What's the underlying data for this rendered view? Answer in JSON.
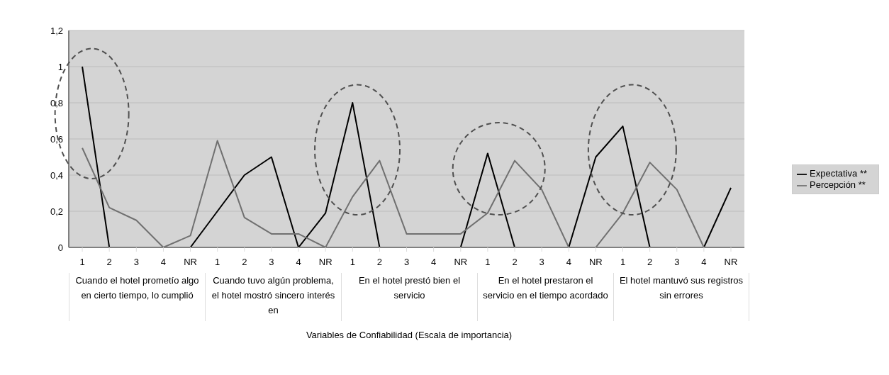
{
  "chart_data": {
    "type": "line",
    "categories": [
      "1",
      "2",
      "3",
      "4",
      "NR",
      "1",
      "2",
      "3",
      "4",
      "NR",
      "1",
      "2",
      "3",
      "4",
      "NR",
      "1",
      "2",
      "3",
      "4",
      "NR",
      "1",
      "2",
      "3",
      "4",
      "NR"
    ],
    "annotations": [
      "Cuando el hotel prometío algo en cierto tiempo, lo cumplió",
      "Cuando tuvo algún problema, el hotel mostró sincero interés en",
      "En el hotel prestó bien el servicio",
      "En el hotel prestaron el servicio en el tiempo acordado",
      "El hotel mantuvó sus registros sin errores",
      "Variables de Confiabilidad (Escala de importancia)"
    ],
    "series": [
      {
        "name": "Expectativa **",
        "color": "#000000",
        "values": [
          1,
          0,
          0,
          0,
          0,
          0.2,
          0.4,
          0.5,
          0,
          0.19,
          0.8,
          0,
          0,
          0,
          0,
          0.52,
          0,
          0,
          0,
          0.5,
          0.67,
          0,
          0,
          0,
          0.33
        ]
      },
      {
        "name": "Percepción **",
        "color": "#707070",
        "values": [
          0.55,
          0.22,
          0.15,
          0,
          0.065,
          0.59,
          0.165,
          0.075,
          0.075,
          0,
          0.28,
          0.48,
          0.075,
          0.075,
          0.075,
          0.19,
          0.48,
          0.32,
          0,
          0,
          0.19,
          0.47,
          0.32,
          0,
          null
        ]
      }
    ],
    "ylim": [
      0,
      1.2
    ],
    "yticks": [
      0,
      {
        "value": 0.2,
        "label": "0,2"
      },
      {
        "value": 0.4,
        "label": "0,4"
      },
      {
        "value": 0.6,
        "label": "0,6"
      },
      {
        "value": 0.8,
        "label": "0,8"
      },
      1,
      {
        "value": 1.2,
        "label": "1,2"
      }
    ],
    "grid": "y",
    "legend": "right",
    "marker": "none",
    "line_style": "solid"
  }
}
